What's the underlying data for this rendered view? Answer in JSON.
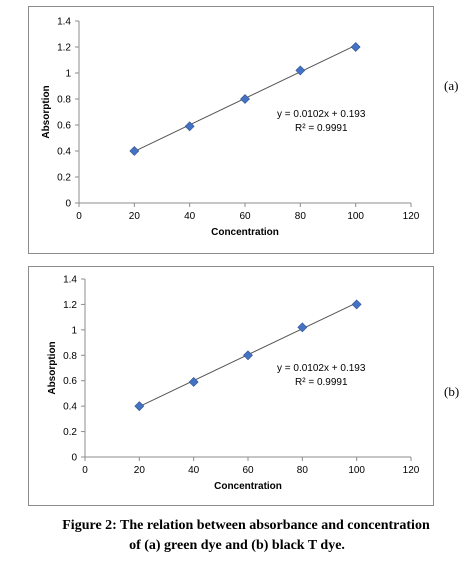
{
  "chart_data": [
    {
      "type": "scatter",
      "panel_label": "(a)",
      "x": [
        20,
        40,
        60,
        80,
        100
      ],
      "y": [
        0.4,
        0.59,
        0.8,
        1.02,
        1.2
      ],
      "xlabel": "Concentration",
      "ylabel": "Absorption",
      "xlim": [
        0,
        120
      ],
      "ylim": [
        0,
        1.4
      ],
      "xticks": [
        0,
        20,
        40,
        60,
        80,
        100,
        120
      ],
      "yticks": [
        0,
        0.2,
        0.4,
        0.6,
        0.8,
        1,
        1.2,
        1.4
      ],
      "trendline": {
        "slope": 0.0102,
        "intercept": 0.193,
        "x_range": [
          20,
          100
        ]
      },
      "equation_text": "y = 0.0102x + 0.193",
      "r2_text": "R² = 0.9991",
      "grid": false,
      "marker_color": "#4472c4",
      "line_color": "#555555"
    },
    {
      "type": "scatter",
      "panel_label": "(b)",
      "x": [
        20,
        40,
        60,
        80,
        100
      ],
      "y": [
        0.4,
        0.59,
        0.8,
        1.02,
        1.2
      ],
      "xlabel": "Concentration",
      "ylabel": "Absorption",
      "xlim": [
        0,
        120
      ],
      "ylim": [
        0,
        1.4
      ],
      "xticks": [
        0,
        20,
        40,
        60,
        80,
        100,
        120
      ],
      "yticks": [
        0,
        0.2,
        0.4,
        0.6,
        0.8,
        1,
        1.2,
        1.4
      ],
      "trendline": {
        "slope": 0.0102,
        "intercept": 0.193,
        "x_range": [
          20,
          100
        ]
      },
      "equation_text": "y = 0.0102x + 0.193",
      "r2_text": "R² = 0.9991",
      "grid": false,
      "marker_color": "#4472c4",
      "line_color": "#555555"
    }
  ],
  "caption": {
    "line1": "Figure 2: The relation between absorbance and concentration",
    "line2": "of (a)  green dye and (b) black T dye."
  }
}
